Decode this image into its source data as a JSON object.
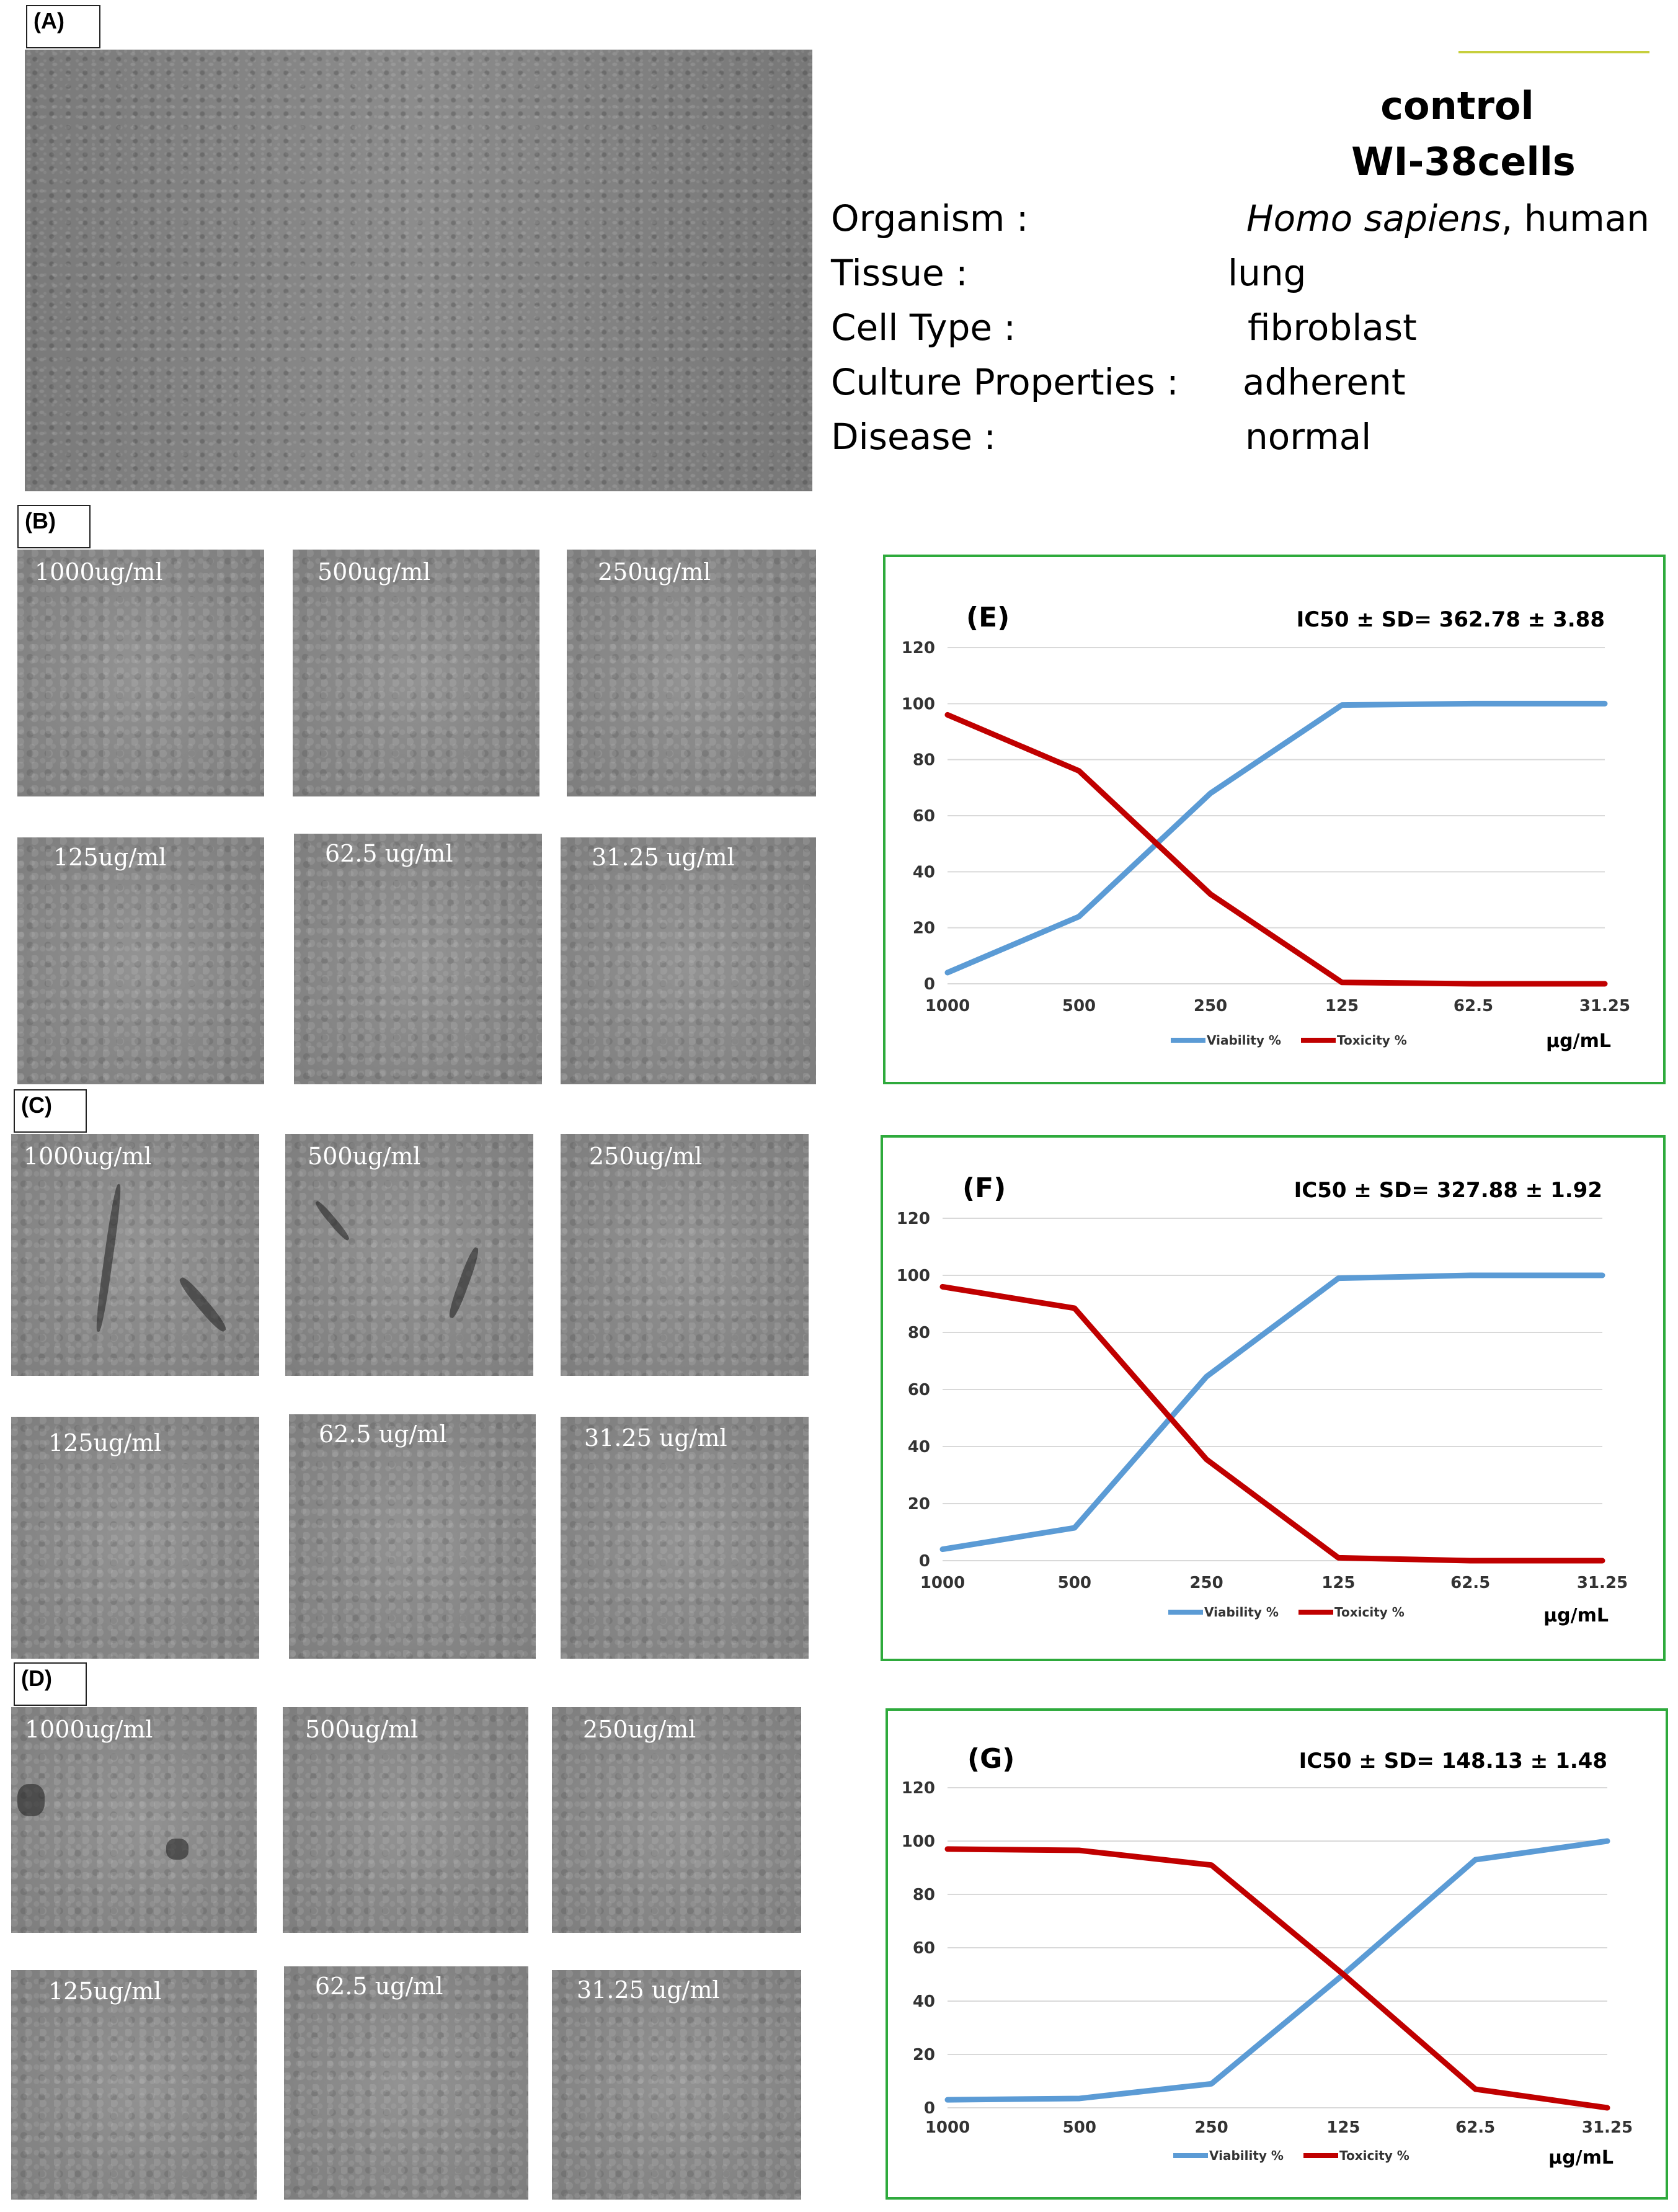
{
  "panels": {
    "a_label": "(A)",
    "b_label": "(B)",
    "c_label": "(C)",
    "d_label": "(D)"
  },
  "control": {
    "title_line1": "control",
    "title_line2": "WI-38cells",
    "rows": [
      {
        "key": "Organism :",
        "value_italic": "Homo sapiens",
        "value_rest": ", human"
      },
      {
        "key": "Tissue       :",
        "value_italic": "",
        "value_rest": "lung"
      },
      {
        "key": "Cell Type  :",
        "value_italic": "",
        "value_rest": "fibroblast"
      },
      {
        "key": "Culture Properties :",
        "value_italic": "",
        "value_rest": "adherent"
      },
      {
        "key": "Disease      :",
        "value_italic": "",
        "value_rest": "normal"
      }
    ]
  },
  "micrographs": {
    "b": [
      "1000ug/ml",
      "500ug/ml",
      "250ug/ml",
      "125ug/ml",
      "62.5 ug/ml",
      "31.25 ug/ml"
    ],
    "c": [
      "1000ug/ml",
      "500ug/ml",
      "250ug/ml",
      "125ug/ml",
      "62.5 ug/ml",
      "31.25 ug/ml"
    ],
    "d": [
      "1000ug/ml",
      "500ug/ml",
      "250ug/ml",
      "125ug/ml",
      "62.5 ug/ml",
      "31.25 ug/ml"
    ]
  },
  "colors": {
    "viability": "#5b9bd5",
    "toxicity": "#c00000",
    "frame": "#2eaa3c"
  },
  "chart_data": [
    {
      "type": "line",
      "panel": "(E)",
      "annotation": "IC50 ± SD= 362.78 ± 3.88",
      "categories": [
        "1000",
        "500",
        "250",
        "125",
        "62.5",
        "31.25"
      ],
      "xlabel": "µg/mL",
      "ylim": [
        0,
        120
      ],
      "yticks": [
        "0",
        "20",
        "40",
        "60",
        "80",
        "100",
        "120"
      ],
      "grid": true,
      "legend": "bottom",
      "series": [
        {
          "name": "Viability %",
          "values": [
            4,
            24,
            68,
            99.5,
            100,
            100
          ]
        },
        {
          "name": "Toxicity %",
          "values": [
            96,
            76,
            32,
            0.5,
            0,
            0
          ]
        }
      ]
    },
    {
      "type": "line",
      "panel": "(F)",
      "annotation": "IC50 ± SD= 327.88 ± 1.92",
      "categories": [
        "1000",
        "500",
        "250",
        "125",
        "62.5",
        "31.25"
      ],
      "xlabel": "µg/mL",
      "ylim": [
        0,
        120
      ],
      "yticks": [
        "0",
        "20",
        "40",
        "60",
        "80",
        "100",
        "120"
      ],
      "grid": true,
      "legend": "bottom",
      "series": [
        {
          "name": "Viability %",
          "values": [
            4,
            11.5,
            64.5,
            99,
            100,
            100
          ]
        },
        {
          "name": "Toxicity %",
          "values": [
            96,
            88.5,
            35.5,
            1,
            0,
            0
          ]
        }
      ]
    },
    {
      "type": "line",
      "panel": "(G)",
      "annotation": "IC50 ± SD= 148.13 ± 1.48",
      "categories": [
        "1000",
        "500",
        "250",
        "125",
        "62.5",
        "31.25"
      ],
      "xlabel": "µg/mL",
      "ylim": [
        0,
        120
      ],
      "yticks": [
        "0",
        "20",
        "40",
        "60",
        "80",
        "100",
        "120"
      ],
      "grid": true,
      "legend": "bottom",
      "series": [
        {
          "name": "Viability %",
          "values": [
            3,
            3.5,
            9,
            50,
            93,
            100
          ]
        },
        {
          "name": "Toxicity %",
          "values": [
            97,
            96.5,
            91,
            50,
            7,
            0
          ]
        }
      ]
    }
  ]
}
